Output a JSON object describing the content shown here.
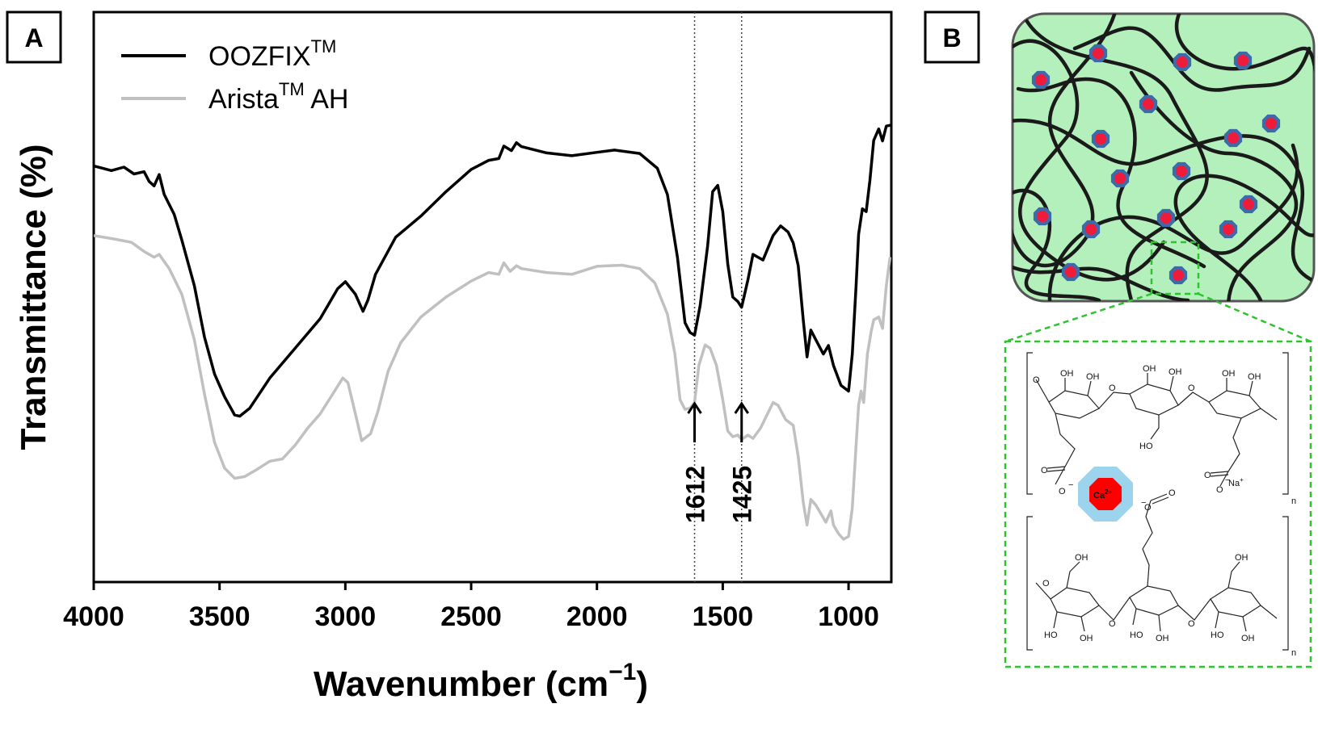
{
  "chart_data": {
    "type": "line",
    "panel_label": "A",
    "title": "",
    "xlabel": "Wavenumber (cm",
    "xlabel_sup": "−1",
    "xlabel_close": ")",
    "ylabel": "Transmittance (%)",
    "x_reversed": true,
    "xlim": [
      4000,
      830
    ],
    "ylim": [
      0,
      100
    ],
    "xticks": [
      4000,
      3500,
      3000,
      2500,
      2000,
      1500,
      1000
    ],
    "series": [
      {
        "name": "OOZFIX",
        "name_sup": "TM",
        "name_suffix": "",
        "color": "#000000",
        "points": [
          [
            4000,
            73
          ],
          [
            3930,
            72.2
          ],
          [
            3880,
            72.8
          ],
          [
            3840,
            71.6
          ],
          [
            3800,
            72
          ],
          [
            3780,
            70.3
          ],
          [
            3760,
            69.5
          ],
          [
            3740,
            71.5
          ],
          [
            3720,
            68
          ],
          [
            3680,
            64.5
          ],
          [
            3650,
            60
          ],
          [
            3600,
            52
          ],
          [
            3560,
            43
          ],
          [
            3520,
            36.5
          ],
          [
            3480,
            32.5
          ],
          [
            3440,
            29.3
          ],
          [
            3420,
            29.1
          ],
          [
            3380,
            30.5
          ],
          [
            3300,
            35.8
          ],
          [
            3200,
            41
          ],
          [
            3100,
            46.2
          ],
          [
            3030,
            51.5
          ],
          [
            3000,
            52.7
          ],
          [
            2960,
            50.5
          ],
          [
            2930,
            47.5
          ],
          [
            2910,
            49.5
          ],
          [
            2880,
            54
          ],
          [
            2800,
            60.5
          ],
          [
            2700,
            64.2
          ],
          [
            2600,
            68.5
          ],
          [
            2500,
            72.4
          ],
          [
            2430,
            74
          ],
          [
            2390,
            74.3
          ],
          [
            2370,
            76.5
          ],
          [
            2340,
            75.7
          ],
          [
            2320,
            77.1
          ],
          [
            2300,
            76.4
          ],
          [
            2200,
            75.3
          ],
          [
            2100,
            74.8
          ],
          [
            2000,
            75.4
          ],
          [
            1930,
            75.8
          ],
          [
            1830,
            75.2
          ],
          [
            1760,
            72.6
          ],
          [
            1720,
            68
          ],
          [
            1680,
            57
          ],
          [
            1650,
            45.5
          ],
          [
            1630,
            43.8
          ],
          [
            1612,
            43.3
          ],
          [
            1590,
            48.5
          ],
          [
            1560,
            59
          ],
          [
            1540,
            68.5
          ],
          [
            1520,
            69.6
          ],
          [
            1500,
            65
          ],
          [
            1480,
            55.8
          ],
          [
            1460,
            50
          ],
          [
            1440,
            49.2
          ],
          [
            1425,
            48.2
          ],
          [
            1400,
            53
          ],
          [
            1380,
            57.5
          ],
          [
            1340,
            56.5
          ],
          [
            1300,
            60.8
          ],
          [
            1270,
            62.5
          ],
          [
            1240,
            61.4
          ],
          [
            1220,
            59.5
          ],
          [
            1200,
            55.5
          ],
          [
            1180,
            46
          ],
          [
            1165,
            39.5
          ],
          [
            1150,
            44.2
          ],
          [
            1130,
            42.5
          ],
          [
            1100,
            40
          ],
          [
            1080,
            41.5
          ],
          [
            1060,
            38
          ],
          [
            1030,
            34.5
          ],
          [
            1000,
            33.5
          ],
          [
            985,
            40
          ],
          [
            970,
            52
          ],
          [
            960,
            61
          ],
          [
            945,
            65.5
          ],
          [
            930,
            65
          ],
          [
            915,
            70.5
          ],
          [
            900,
            77.5
          ],
          [
            880,
            79.5
          ],
          [
            865,
            77.4
          ],
          [
            850,
            80
          ],
          [
            830,
            80.2
          ]
        ]
      },
      {
        "name": "Arista",
        "name_sup": "TM",
        "name_suffix": " AH",
        "color": "#c0c0c0",
        "points": [
          [
            4000,
            60.8
          ],
          [
            3920,
            60.2
          ],
          [
            3850,
            59.6
          ],
          [
            3800,
            58
          ],
          [
            3760,
            57
          ],
          [
            3740,
            57.5
          ],
          [
            3700,
            55
          ],
          [
            3650,
            50.5
          ],
          [
            3600,
            42.5
          ],
          [
            3560,
            33
          ],
          [
            3520,
            24.5
          ],
          [
            3480,
            20
          ],
          [
            3440,
            18.2
          ],
          [
            3400,
            18.5
          ],
          [
            3350,
            19.8
          ],
          [
            3300,
            21.2
          ],
          [
            3250,
            21.6
          ],
          [
            3200,
            24
          ],
          [
            3150,
            27
          ],
          [
            3100,
            29.5
          ],
          [
            3050,
            33
          ],
          [
            3010,
            35.8
          ],
          [
            2990,
            35
          ],
          [
            2960,
            29.5
          ],
          [
            2935,
            24.8
          ],
          [
            2915,
            25.5
          ],
          [
            2900,
            26
          ],
          [
            2870,
            30
          ],
          [
            2830,
            37
          ],
          [
            2780,
            42
          ],
          [
            2700,
            46.5
          ],
          [
            2600,
            50
          ],
          [
            2500,
            52.8
          ],
          [
            2430,
            54.3
          ],
          [
            2390,
            54
          ],
          [
            2370,
            56
          ],
          [
            2345,
            54.5
          ],
          [
            2320,
            55.5
          ],
          [
            2300,
            55
          ],
          [
            2200,
            54.3
          ],
          [
            2100,
            54
          ],
          [
            2000,
            55.4
          ],
          [
            1900,
            55.6
          ],
          [
            1830,
            55
          ],
          [
            1770,
            52.5
          ],
          [
            1720,
            47
          ],
          [
            1690,
            40
          ],
          [
            1670,
            32
          ],
          [
            1650,
            30.3
          ],
          [
            1630,
            30.5
          ],
          [
            1612,
            31.5
          ],
          [
            1595,
            38
          ],
          [
            1570,
            41.6
          ],
          [
            1550,
            41
          ],
          [
            1525,
            38
          ],
          [
            1500,
            32
          ],
          [
            1480,
            26.5
          ],
          [
            1460,
            25.5
          ],
          [
            1440,
            25.8
          ],
          [
            1425,
            25
          ],
          [
            1400,
            25.8
          ],
          [
            1380,
            25.2
          ],
          [
            1350,
            27
          ],
          [
            1300,
            31.5
          ],
          [
            1280,
            31
          ],
          [
            1250,
            28.5
          ],
          [
            1220,
            27.5
          ],
          [
            1200,
            22
          ],
          [
            1180,
            14
          ],
          [
            1165,
            10
          ],
          [
            1150,
            14.5
          ],
          [
            1130,
            13.5
          ],
          [
            1110,
            12
          ],
          [
            1090,
            10.5
          ],
          [
            1070,
            12.5
          ],
          [
            1060,
            10
          ],
          [
            1040,
            8.5
          ],
          [
            1020,
            7.5
          ],
          [
            1000,
            8
          ],
          [
            985,
            13
          ],
          [
            970,
            24
          ],
          [
            960,
            31
          ],
          [
            950,
            33.5
          ],
          [
            940,
            31.5
          ],
          [
            925,
            40
          ],
          [
            910,
            44
          ],
          [
            900,
            46
          ],
          [
            880,
            46.5
          ],
          [
            865,
            44.5
          ],
          [
            850,
            52
          ],
          [
            835,
            57
          ]
        ]
      }
    ],
    "reference_lines": [
      1612,
      1425
    ],
    "annotations": [
      {
        "text": "1612",
        "x": 1612
      },
      {
        "text": "1425",
        "x": 1425
      }
    ]
  },
  "panel_b": {
    "label": "B",
    "colors": {
      "gel_fill": "#b4f0bc",
      "gel_border": "#555555",
      "strand": "#1a1a1a",
      "ion_core": "#ee1b3b",
      "ion_ring": "#3d6aa8",
      "zoom_box": "#2ec42e",
      "chelate_halo": "#9cd4ee",
      "chelate_core": "#ff0000"
    },
    "chelate_ion": "Ca",
    "chelate_ion_sup": "2+",
    "counter_ion": "Na",
    "counter_ion_sup": "+",
    "hydroxyl": "OH",
    "hydroxyl_left": "HO",
    "oxygen": "O",
    "anion_mark": "−",
    "repeat_n": "n"
  }
}
